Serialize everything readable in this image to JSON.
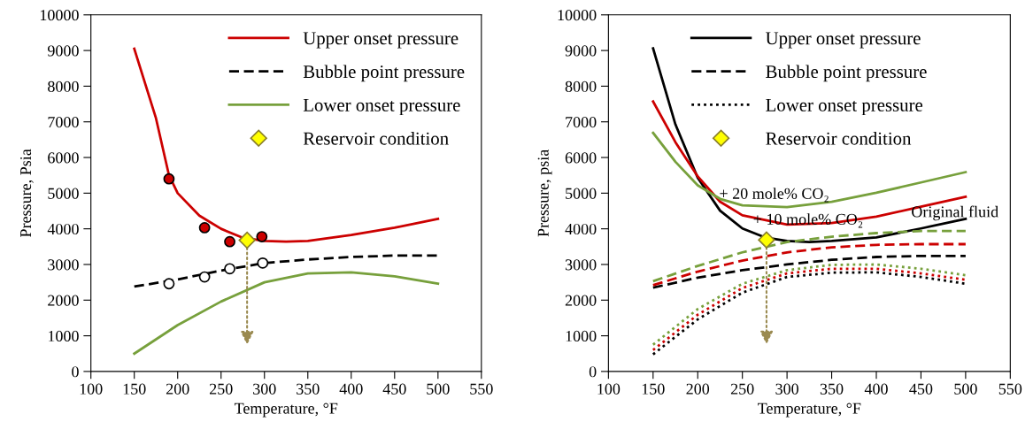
{
  "chart_data": [
    {
      "type": "line",
      "xlabel": "Temperature, °F",
      "ylabel": "Pressure, Psia",
      "xlim": [
        100,
        550
      ],
      "xticks": [
        100,
        150,
        200,
        250,
        300,
        350,
        400,
        450,
        500,
        550
      ],
      "ylim": [
        0,
        10000
      ],
      "yticks": [
        0,
        1000,
        2000,
        3000,
        4000,
        5000,
        6000,
        7000,
        8000,
        9000,
        10000
      ],
      "grid": false,
      "legend": "top right",
      "series": [
        {
          "name": "Upper onset pressure",
          "type": "line",
          "line_style": "solid",
          "marker": "none",
          "color": "#cc0000",
          "x": [
            150,
            175,
            190,
            200,
            225,
            250,
            275,
            300,
            325,
            350,
            400,
            450,
            500
          ],
          "values": [
            9050,
            7100,
            5500,
            5000,
            4370,
            4000,
            3750,
            3660,
            3640,
            3660,
            3830,
            4030,
            4280
          ]
        },
        {
          "name": "Bubble point pressure",
          "type": "line",
          "line_style": "dashed",
          "marker": "none",
          "color": "#000000",
          "x": [
            150,
            200,
            250,
            300,
            350,
            400,
            450,
            500
          ],
          "values": [
            2380,
            2580,
            2830,
            3040,
            3140,
            3210,
            3250,
            3250
          ]
        },
        {
          "name": "Lower onset pressure",
          "type": "line",
          "line_style": "solid",
          "marker": "none",
          "color": "#77a03c",
          "x": [
            150,
            200,
            250,
            300,
            350,
            400,
            450,
            500
          ],
          "values": [
            500,
            1300,
            1960,
            2500,
            2750,
            2780,
            2670,
            2460
          ]
        },
        {
          "name": "Reservoir condition",
          "type": "scatter",
          "marker": "diamond",
          "color": "#ffff00",
          "x": [
            280
          ],
          "values": [
            3680
          ]
        },
        {
          "type": "scatter",
          "marker": "circle",
          "color": "#cc0000",
          "x": [
            190,
            231,
            260,
            297
          ],
          "values": [
            5400,
            4030,
            3640,
            3780
          ]
        },
        {
          "type": "scatter",
          "marker": "circle",
          "color": "#ffffff",
          "x": [
            190,
            231,
            260,
            298
          ],
          "values": [
            2460,
            2650,
            2880,
            3040
          ]
        }
      ]
    },
    {
      "type": "line",
      "xlabel": "Temperature, °F",
      "ylabel": "Pressure, psia",
      "xlim": [
        100,
        550
      ],
      "xticks": [
        100,
        150,
        200,
        250,
        300,
        350,
        400,
        450,
        500,
        550
      ],
      "ylim": [
        0,
        10000
      ],
      "yticks": [
        0,
        1000,
        2000,
        3000,
        4000,
        5000,
        6000,
        7000,
        8000,
        9000,
        10000
      ],
      "grid": false,
      "legend": "top",
      "annotations": [
        {
          "text": "+ 20 mole% CO₂",
          "x": 224,
          "y": 4950
        },
        {
          "text": "+ 10 mole% CO₂",
          "x": 262,
          "y": 4230
        },
        {
          "text": "Original fluid",
          "x": 439,
          "y": 4440
        }
      ],
      "series": [
        {
          "name": "Upper onset pressure",
          "type": "line",
          "line_style": "solid",
          "marker": "none",
          "color": "#000000",
          "x": [
            150,
            175,
            200,
            225,
            250,
            275,
            300,
            325,
            350,
            400,
            450,
            500
          ],
          "values": [
            9060,
            6930,
            5430,
            4510,
            4010,
            3760,
            3660,
            3630,
            3660,
            3760,
            4010,
            4280
          ]
        },
        {
          "name": "Bubble point pressure",
          "type": "line",
          "line_style": "dashed",
          "marker": "none",
          "color": "#000000",
          "x": [
            150,
            200,
            250,
            300,
            350,
            400,
            450,
            500
          ],
          "values": [
            2350,
            2630,
            2840,
            3000,
            3130,
            3210,
            3240,
            3240
          ]
        },
        {
          "name": "Lower onset pressure",
          "type": "line",
          "line_style": "dotted",
          "marker": "none",
          "color": "#000000",
          "x": [
            150,
            200,
            250,
            300,
            350,
            400,
            450,
            500
          ],
          "values": [
            480,
            1460,
            2210,
            2650,
            2770,
            2780,
            2650,
            2460
          ]
        },
        {
          "name": "Reservoir condition",
          "type": "scatter",
          "marker": "diamond",
          "color": "#ffff00",
          "x": [
            277
          ],
          "values": [
            3690
          ]
        },
        {
          "type": "line",
          "line_style": "solid",
          "marker": "none",
          "color": "#cc0000",
          "x": [
            150,
            175,
            200,
            225,
            250,
            300,
            350,
            400,
            450,
            500
          ],
          "values": [
            7570,
            6430,
            5470,
            4760,
            4380,
            4120,
            4160,
            4340,
            4620,
            4900
          ]
        },
        {
          "type": "line",
          "line_style": "solid",
          "marker": "none",
          "color": "#77a03c",
          "x": [
            150,
            175,
            200,
            225,
            250,
            300,
            350,
            400,
            450,
            500
          ],
          "values": [
            6690,
            5880,
            5220,
            4840,
            4660,
            4610,
            4760,
            5010,
            5300,
            5590
          ]
        },
        {
          "type": "line",
          "line_style": "dashed",
          "marker": "none",
          "color": "#cc0000",
          "x": [
            150,
            200,
            250,
            300,
            350,
            400,
            450,
            500
          ],
          "values": [
            2420,
            2800,
            3110,
            3340,
            3480,
            3550,
            3570,
            3570
          ]
        },
        {
          "type": "line",
          "line_style": "dashed",
          "marker": "none",
          "color": "#77a03c",
          "x": [
            150,
            200,
            250,
            300,
            350,
            400,
            450,
            500
          ],
          "values": [
            2530,
            2960,
            3340,
            3630,
            3780,
            3880,
            3940,
            3940
          ]
        },
        {
          "type": "line",
          "line_style": "dotted",
          "marker": "none",
          "color": "#cc0000",
          "x": [
            150,
            200,
            250,
            300,
            350,
            400,
            450,
            500
          ],
          "values": [
            600,
            1590,
            2340,
            2750,
            2880,
            2880,
            2750,
            2570
          ]
        },
        {
          "type": "line",
          "line_style": "dotted",
          "marker": "none",
          "color": "#77a03c",
          "x": [
            150,
            200,
            250,
            300,
            350,
            400,
            450,
            500
          ],
          "values": [
            750,
            1750,
            2460,
            2840,
            2990,
            3000,
            2880,
            2700
          ]
        }
      ]
    }
  ]
}
